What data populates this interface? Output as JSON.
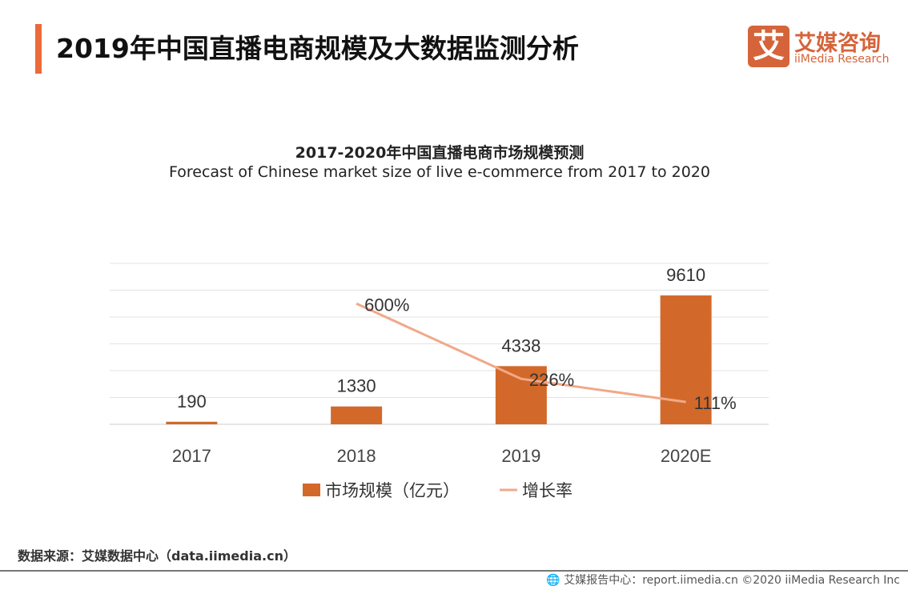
{
  "header": {
    "title": "2019年中国直播电商规模及大数据监测分析"
  },
  "logo": {
    "mark": "艾",
    "cn": "艾媒咨询",
    "en": "iiMedia Research"
  },
  "chart_data": {
    "type": "bar+line",
    "title": "2017-2020年中国直播电商市场规模预测",
    "subtitle": "Forecast of Chinese market size of live e-commerce from 2017 to 2020",
    "categories": [
      "2017",
      "2018",
      "2019",
      "2020E"
    ],
    "series": [
      {
        "name": "市场规模（亿元）",
        "type": "bar",
        "values": [
          190,
          1330,
          4338,
          9610
        ],
        "labels": [
          "190",
          "1330",
          "4338",
          "9610"
        ],
        "color": "#d2692a",
        "axis": "left"
      },
      {
        "name": "增长率",
        "type": "line",
        "values": [
          null,
          600,
          226,
          111
        ],
        "labels": [
          "",
          "600%",
          "226%",
          "111%"
        ],
        "color": "#f0a989",
        "axis": "right"
      }
    ],
    "ylim": [
      0,
      12000
    ],
    "y2lim": [
      0,
      800
    ],
    "grid": true,
    "legend": "bottom"
  },
  "footer": {
    "source": "数据来源：艾媒数据中心（data.iimedia.cn）",
    "credit": "艾媒报告中心：report.iimedia.cn   ©2020  iiMedia Research  Inc",
    "globe_icon": "globe-icon"
  }
}
